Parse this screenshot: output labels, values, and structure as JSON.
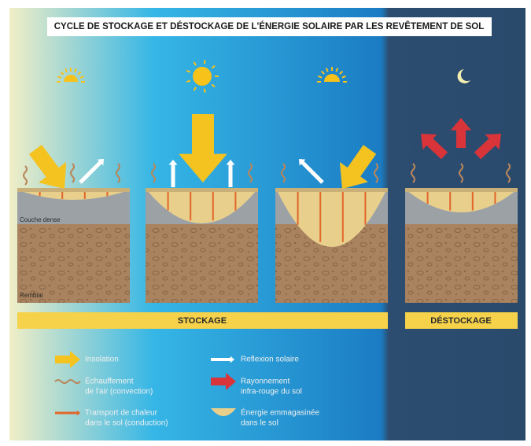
{
  "title": "CYCLE DE STOCKAGE ET DÉSTOCKAGE DE L'ÉNERGIE SOLAIRE PAR LES REVÊTEMENT DE SOL",
  "layers": {
    "dense": "Couche dense",
    "fill": "Remblai"
  },
  "phases": {
    "storage": "STOCKAGE",
    "release": "DÉSTOCKAGE"
  },
  "legend": {
    "items": [
      {
        "lines": [
          "Insolation"
        ]
      },
      {
        "lines": [
          "Échauffement",
          "de l'air (convection)"
        ]
      },
      {
        "lines": [
          "Transport de chaleur",
          "dans le sol (conduction)"
        ]
      },
      {
        "lines": [
          "Reflexion solaire"
        ]
      },
      {
        "lines": [
          "Rayonnement",
          "infra-rouge du sol"
        ]
      },
      {
        "lines": [
          "Énergie emmagasinée",
          "dans le sol"
        ]
      }
    ]
  }
}
